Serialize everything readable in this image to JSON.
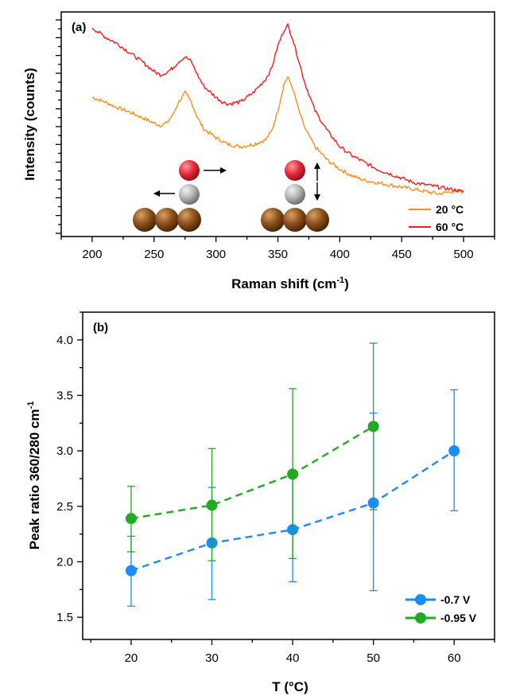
{
  "chart_data": [
    {
      "panel_label": "(a)",
      "type": "line",
      "xlabel": "Raman shift (cm",
      "xlabel_sup": "-1",
      "xlabel_end": ")",
      "ylabel": "Intensity (counts)",
      "xlim": [
        175,
        525
      ],
      "ylim": [
        0,
        100
      ],
      "xticks": [
        "200",
        "250",
        "300",
        "350",
        "400",
        "450",
        "500"
      ],
      "y_tick_labels_shown": false,
      "legend_position": "bottom-right",
      "series": [
        {
          "name": "20 °C",
          "color": "#ff8c1a",
          "points": [
            [
              200,
              62
            ],
            [
              210,
              60
            ],
            [
              220,
              57.5
            ],
            [
              230,
              55.5
            ],
            [
              240,
              53
            ],
            [
              250,
              50.5
            ],
            [
              255,
              49.5
            ],
            [
              260,
              50.5
            ],
            [
              265,
              54
            ],
            [
              270,
              60
            ],
            [
              275,
              64
            ],
            [
              280,
              60
            ],
            [
              285,
              53
            ],
            [
              290,
              48
            ],
            [
              300,
              44
            ],
            [
              310,
              41
            ],
            [
              320,
              40
            ],
            [
              330,
              41
            ],
            [
              340,
              43
            ],
            [
              345,
              47
            ],
            [
              350,
              56
            ],
            [
              355,
              68
            ],
            [
              358,
              71
            ],
            [
              362,
              66
            ],
            [
              367,
              56
            ],
            [
              372,
              48
            ],
            [
              380,
              40
            ],
            [
              390,
              34
            ],
            [
              400,
              30
            ],
            [
              410,
              27
            ],
            [
              420,
              25
            ],
            [
              430,
              24
            ],
            [
              440,
              23
            ],
            [
              450,
              22
            ],
            [
              460,
              21
            ],
            [
              470,
              20
            ],
            [
              480,
              19
            ],
            [
              490,
              20
            ],
            [
              500,
              20
            ]
          ]
        },
        {
          "name": "60 °C",
          "color": "#ff1a1a",
          "points": [
            [
              200,
              93
            ],
            [
              210,
              89
            ],
            [
              220,
              86
            ],
            [
              230,
              82
            ],
            [
              240,
              78
            ],
            [
              250,
              73.5
            ],
            [
              255,
              72
            ],
            [
              260,
              73
            ],
            [
              265,
              75
            ],
            [
              270,
              78
            ],
            [
              275,
              80
            ],
            [
              280,
              78
            ],
            [
              285,
              72
            ],
            [
              290,
              67
            ],
            [
              300,
              62
            ],
            [
              305,
              60
            ],
            [
              310,
              59
            ],
            [
              320,
              60
            ],
            [
              330,
              64
            ],
            [
              340,
              70
            ],
            [
              345,
              75
            ],
            [
              350,
              85
            ],
            [
              355,
              92
            ],
            [
              358,
              94
            ],
            [
              362,
              88
            ],
            [
              367,
              78
            ],
            [
              372,
              68
            ],
            [
              380,
              56
            ],
            [
              390,
              47
            ],
            [
              400,
              40
            ],
            [
              410,
              36
            ],
            [
              420,
              33
            ],
            [
              430,
              30
            ],
            [
              440,
              28
            ],
            [
              450,
              26
            ],
            [
              460,
              24
            ],
            [
              470,
              23
            ],
            [
              480,
              22
            ],
            [
              490,
              21
            ],
            [
              500,
              20
            ]
          ]
        }
      ]
    },
    {
      "panel_label": "(b)",
      "type": "scatter",
      "xlabel": "T (°C)",
      "ylabel": "Peak ratio 360/280 cm",
      "ylabel_sup": "-1",
      "xlim": [
        14,
        65
      ],
      "ylim": [
        1.3,
        4.25
      ],
      "xticks": [
        "20",
        "30",
        "40",
        "50",
        "60"
      ],
      "yticks": [
        "1.5",
        "2.0",
        "2.5",
        "3.0",
        "3.5",
        "4.0"
      ],
      "legend_position": "bottom-right",
      "series": [
        {
          "name": "-0.7 V",
          "color": "#1a8cff",
          "points": [
            {
              "x": 20,
              "y": 1.92,
              "err_low": 1.6,
              "err_high": 2.23
            },
            {
              "x": 30,
              "y": 2.17,
              "err_low": 1.66,
              "err_high": 2.67
            },
            {
              "x": 40,
              "y": 2.29,
              "err_low": 1.82,
              "err_high": 2.77
            },
            {
              "x": 50,
              "y": 2.53,
              "err_low": 1.74,
              "err_high": 3.34
            },
            {
              "x": 60,
              "y": 3.0,
              "err_low": 2.46,
              "err_high": 3.55
            }
          ]
        },
        {
          "name": "-0.95 V",
          "color": "#22aa22",
          "points": [
            {
              "x": 20,
              "y": 2.39,
              "err_low": 2.09,
              "err_high": 2.68
            },
            {
              "x": 30,
              "y": 2.51,
              "err_low": 2.01,
              "err_high": 3.02
            },
            {
              "x": 40,
              "y": 2.79,
              "err_low": 2.03,
              "err_high": 3.56
            },
            {
              "x": 50,
              "y": 3.22,
              "err_low": 2.47,
              "err_high": 3.97
            }
          ]
        }
      ]
    }
  ],
  "icons": {
    "atom_top": "red-sphere",
    "atom_mid": "grey-sphere",
    "substrate": "brown-spheres",
    "atom_top_color": "#e8283a",
    "atom_mid_color": "#b4b4b4",
    "substrate_color": "#8c4f1c"
  }
}
